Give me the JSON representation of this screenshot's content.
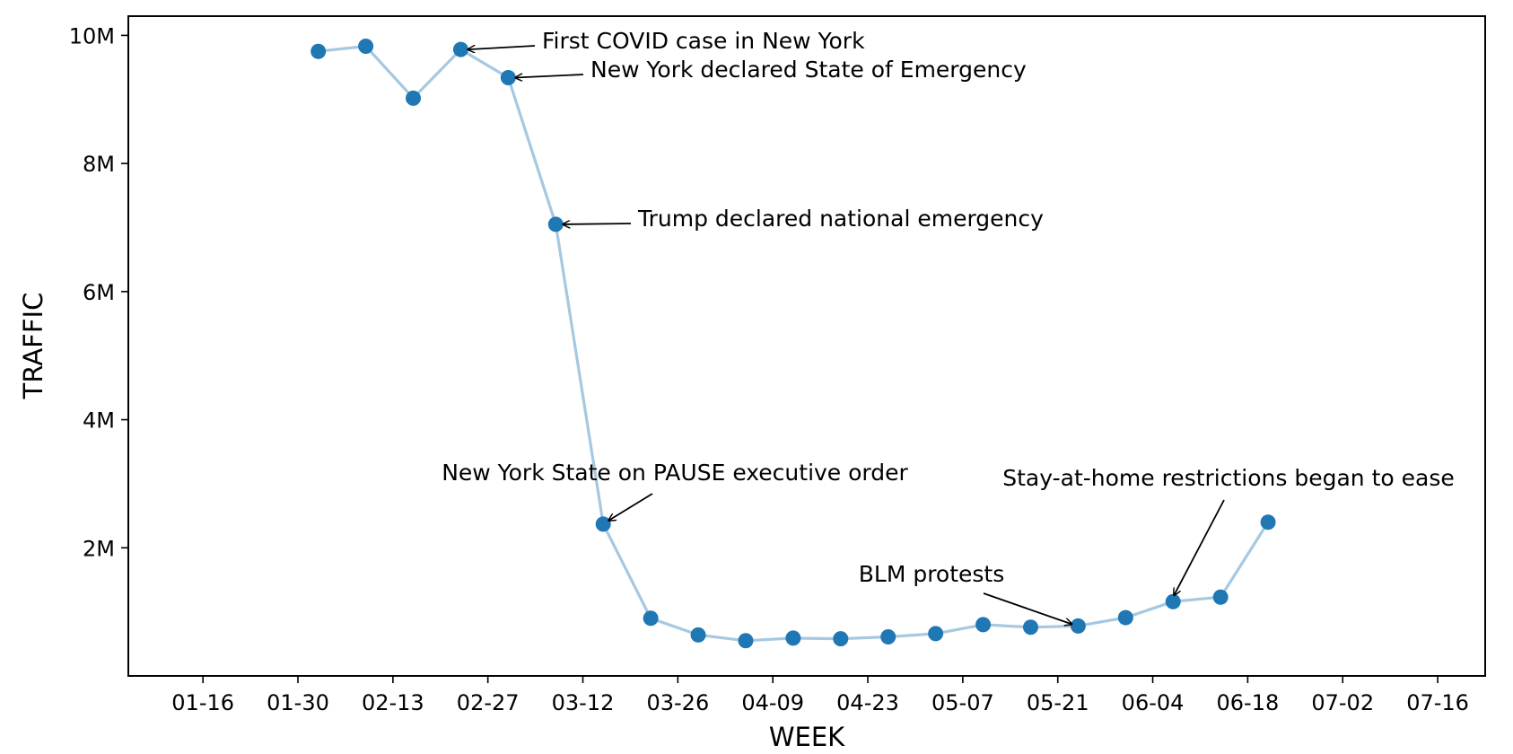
{
  "chart_data": {
    "type": "line",
    "xlabel": "WEEK",
    "ylabel": "TRAFFIC",
    "x_tick_labels": [
      "01-16",
      "01-30",
      "02-13",
      "02-27",
      "03-12",
      "03-26",
      "04-09",
      "04-23",
      "05-07",
      "05-21",
      "06-04",
      "06-18",
      "07-02",
      "07-16"
    ],
    "y_tick_labels": [
      "2M",
      "4M",
      "6M",
      "8M",
      "10M"
    ],
    "y_ticks": [
      2000000,
      4000000,
      6000000,
      8000000,
      10000000
    ],
    "xlim": [
      "2020-01-05",
      "2020-07-23"
    ],
    "ylim": [
      0,
      10300000
    ],
    "grid": false,
    "colors": {
      "line": "#a6c8e0",
      "marker": "#1f77b4"
    },
    "x": [
      "2020-02-02",
      "2020-02-09",
      "2020-02-16",
      "2020-02-23",
      "2020-03-01",
      "2020-03-08",
      "2020-03-15",
      "2020-03-22",
      "2020-03-29",
      "2020-04-05",
      "2020-04-12",
      "2020-04-19",
      "2020-04-26",
      "2020-05-03",
      "2020-05-10",
      "2020-05-17",
      "2020-05-24",
      "2020-05-31",
      "2020-06-07",
      "2020-06-14",
      "2020-06-21"
    ],
    "values": [
      9750000,
      9830000,
      9020000,
      9780000,
      9340000,
      7050000,
      2370000,
      900000,
      640000,
      550000,
      590000,
      580000,
      610000,
      660000,
      800000,
      760000,
      780000,
      910000,
      1160000,
      1230000,
      2400000
    ],
    "annotations": [
      {
        "text": "First COVID case in New York",
        "point_index": 3,
        "placement": "right"
      },
      {
        "text": "New York declared State of Emergency",
        "point_index": 4,
        "placement": "right"
      },
      {
        "text": "Trump declared national emergency",
        "point_index": 5,
        "placement": "right"
      },
      {
        "text": "New York State on PAUSE executive order",
        "point_index": 6,
        "placement": "above"
      },
      {
        "text": "BLM protests",
        "point_index": 16,
        "placement": "above-left"
      },
      {
        "text": "Stay-at-home restrictions began to ease",
        "point_index": 18,
        "placement": "above"
      }
    ]
  }
}
